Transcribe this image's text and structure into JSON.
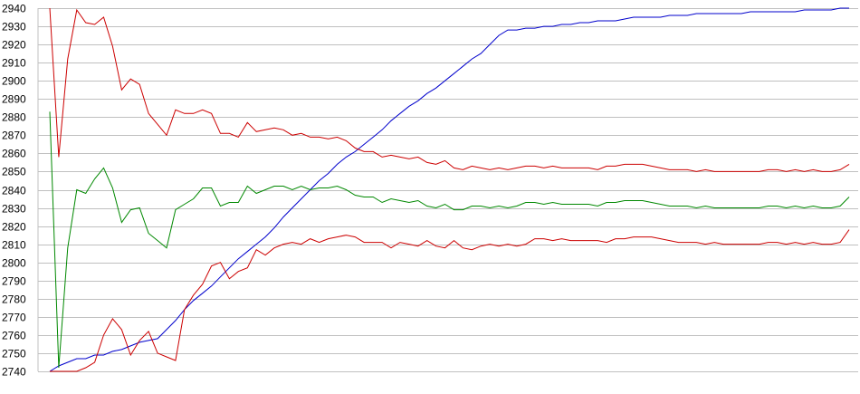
{
  "chart_data": {
    "type": "line",
    "title": "",
    "xlabel": "",
    "ylabel": "",
    "ylim": [
      2740,
      2940
    ],
    "y_ticks": [
      2740,
      2750,
      2760,
      2770,
      2780,
      2790,
      2800,
      2810,
      2820,
      2830,
      2840,
      2850,
      2860,
      2870,
      2880,
      2890,
      2900,
      2910,
      2920,
      2930,
      2940
    ],
    "grid": true,
    "legend": "none",
    "x": [
      0,
      1,
      2,
      3,
      4,
      5,
      6,
      7,
      8,
      9,
      10,
      11,
      12,
      13,
      14,
      15,
      16,
      17,
      18,
      19,
      20,
      21,
      22,
      23,
      24,
      25,
      26,
      27,
      28,
      29,
      30,
      31,
      32,
      33,
      34,
      35,
      36,
      37,
      38,
      39,
      40,
      41,
      42,
      43,
      44,
      45,
      46,
      47,
      48,
      49,
      50,
      51,
      52,
      53,
      54,
      55,
      56,
      57,
      58,
      59,
      60,
      61,
      62,
      63,
      64,
      65,
      66,
      67,
      68,
      69,
      70,
      71,
      72,
      73,
      74,
      75,
      76,
      77,
      78,
      79,
      80,
      81,
      82,
      83,
      84,
      85,
      86,
      87,
      88,
      89
    ],
    "series": [
      {
        "color": "#0000cc",
        "values": [
          2740,
          2743,
          2745,
          2747,
          2747,
          2749,
          2749,
          2751,
          2752,
          2754,
          2756,
          2757,
          2758,
          2763,
          2768,
          2774,
          2779,
          2783,
          2787,
          2792,
          2797,
          2802,
          2806,
          2810,
          2814,
          2819,
          2825,
          2830,
          2835,
          2840,
          2845,
          2849,
          2854,
          2858,
          2861,
          2865,
          2869,
          2873,
          2878,
          2882,
          2886,
          2889,
          2893,
          2896,
          2900,
          2904,
          2908,
          2912,
          2915,
          2920,
          2925,
          2928,
          2928,
          2929,
          2929,
          2930,
          2930,
          2931,
          2931,
          2932,
          2932,
          2933,
          2933,
          2933,
          2934,
          2935,
          2935,
          2935,
          2935,
          2936,
          2936,
          2936,
          2937,
          2937,
          2937,
          2937,
          2937,
          2937,
          2938,
          2938,
          2938,
          2938,
          2938,
          2938,
          2939,
          2939,
          2939,
          2939,
          2940,
          2940
        ]
      },
      {
        "color": "#cc0000",
        "values": [
          2940,
          2858,
          2912,
          2939,
          2932,
          2931,
          2935,
          2919,
          2895,
          2901,
          2898,
          2882,
          2876,
          2870,
          2884,
          2882,
          2882,
          2884,
          2882,
          2871,
          2871,
          2869,
          2877,
          2872,
          2873,
          2874,
          2873,
          2870,
          2871,
          2869,
          2869,
          2868,
          2869,
          2867,
          2863,
          2861,
          2861,
          2858,
          2859,
          2858,
          2857,
          2858,
          2855,
          2854,
          2856,
          2852,
          2851,
          2853,
          2852,
          2851,
          2852,
          2851,
          2852,
          2853,
          2853,
          2852,
          2853,
          2852,
          2852,
          2852,
          2852,
          2851,
          2853,
          2853,
          2854,
          2854,
          2854,
          2853,
          2852,
          2851,
          2851,
          2851,
          2850,
          2851,
          2850,
          2850,
          2850,
          2850,
          2850,
          2850,
          2851,
          2851,
          2850,
          2851,
          2850,
          2851,
          2850,
          2850,
          2851,
          2854
        ]
      },
      {
        "color": "#008800",
        "values": [
          2883,
          2742,
          2808,
          2840,
          2838,
          2846,
          2852,
          2841,
          2822,
          2829,
          2830,
          2816,
          2812,
          2808,
          2829,
          2832,
          2835,
          2841,
          2841,
          2831,
          2833,
          2833,
          2842,
          2838,
          2840,
          2842,
          2842,
          2840,
          2842,
          2840,
          2841,
          2841,
          2842,
          2840,
          2837,
          2836,
          2836,
          2833,
          2835,
          2834,
          2833,
          2834,
          2831,
          2830,
          2832,
          2829,
          2829,
          2831,
          2831,
          2830,
          2831,
          2830,
          2831,
          2833,
          2833,
          2832,
          2833,
          2832,
          2832,
          2832,
          2832,
          2831,
          2833,
          2833,
          2834,
          2834,
          2834,
          2833,
          2832,
          2831,
          2831,
          2831,
          2830,
          2831,
          2830,
          2830,
          2830,
          2830,
          2830,
          2830,
          2831,
          2831,
          2830,
          2831,
          2830,
          2831,
          2830,
          2830,
          2831,
          2836
        ]
      },
      {
        "color": "#cc0000",
        "values": [
          2740,
          2740,
          2740,
          2740,
          2742,
          2745,
          2760,
          2769,
          2763,
          2749,
          2757,
          2762,
          2750,
          2748,
          2746,
          2774,
          2782,
          2788,
          2798,
          2800,
          2791,
          2795,
          2797,
          2807,
          2804,
          2808,
          2810,
          2811,
          2810,
          2813,
          2811,
          2813,
          2814,
          2815,
          2814,
          2811,
          2811,
          2811,
          2808,
          2811,
          2810,
          2809,
          2812,
          2809,
          2808,
          2812,
          2808,
          2807,
          2809,
          2810,
          2809,
          2810,
          2809,
          2810,
          2813,
          2813,
          2812,
          2813,
          2812,
          2812,
          2812,
          2812,
          2811,
          2813,
          2813,
          2814,
          2814,
          2814,
          2813,
          2812,
          2811,
          2811,
          2811,
          2810,
          2811,
          2810,
          2810,
          2810,
          2810,
          2810,
          2811,
          2811,
          2810,
          2811,
          2810,
          2811,
          2810,
          2810,
          2811,
          2818
        ]
      }
    ]
  }
}
